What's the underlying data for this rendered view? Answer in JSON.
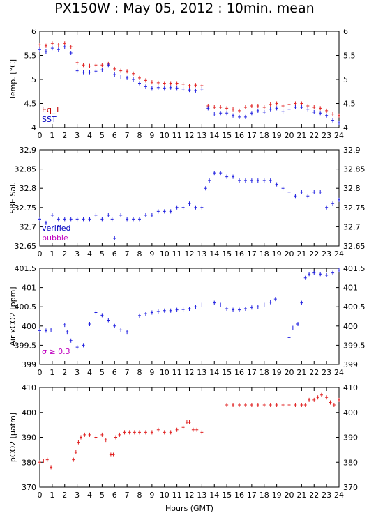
{
  "title": "PX150W : May 05, 2012 : 10min. mean",
  "xlabel": "Hours (GMT)",
  "chart_data": [
    {
      "type": "scatter",
      "ylabel": "Temp. [°C]",
      "ylim": [
        4,
        6
      ],
      "yticks": [
        4,
        4.5,
        5,
        5.5,
        6
      ],
      "yticklabels": [
        "4",
        "4.5",
        "5",
        "5.5",
        "6"
      ],
      "xlim": [
        0,
        24
      ],
      "xticks": [
        0,
        1,
        2,
        3,
        4,
        5,
        6,
        7,
        8,
        9,
        10,
        11,
        12,
        13,
        14,
        15,
        16,
        17,
        18,
        19,
        20,
        21,
        22,
        23,
        24
      ],
      "legend": [
        "Eq_T",
        "SST"
      ],
      "legend_position": "bottom-left",
      "series": [
        {
          "name": "Eq_T",
          "color": "#e02020",
          "x": [
            0,
            0.5,
            1,
            1.5,
            2,
            2.5,
            3,
            3.5,
            4,
            4.5,
            5,
            5.5,
            6,
            6.5,
            7,
            7.5,
            8,
            8.5,
            9,
            9.5,
            10,
            10.5,
            11,
            11.5,
            12,
            12.5,
            13,
            13.5,
            14,
            14.5,
            15,
            15.5,
            16,
            16.5,
            17,
            17.5,
            18,
            18.5,
            19,
            19.5,
            20,
            20.5,
            21,
            21.5,
            22,
            22.5,
            23,
            23.5,
            24
          ],
          "y": [
            5.72,
            5.7,
            5.75,
            5.72,
            5.75,
            5.68,
            5.35,
            5.3,
            5.28,
            5.3,
            5.3,
            5.32,
            5.22,
            5.18,
            5.17,
            5.12,
            5.03,
            4.98,
            4.94,
            4.93,
            4.92,
            4.92,
            4.92,
            4.9,
            4.87,
            4.88,
            4.87,
            4.45,
            4.42,
            4.42,
            4.4,
            4.38,
            4.35,
            4.42,
            4.45,
            4.45,
            4.42,
            4.48,
            4.5,
            4.45,
            4.48,
            4.5,
            4.5,
            4.45,
            4.42,
            4.4,
            4.35,
            4.28,
            4.25
          ]
        },
        {
          "name": "SST",
          "color": "#2020e0",
          "x": [
            0,
            0.5,
            1,
            1.5,
            2,
            2.5,
            3,
            3.5,
            4,
            4.5,
            5,
            5.5,
            6,
            6.5,
            7,
            7.5,
            8,
            8.5,
            9,
            9.5,
            10,
            10.5,
            11,
            11.5,
            12,
            12.5,
            13,
            13.5,
            14,
            14.5,
            15,
            15.5,
            16,
            16.5,
            17,
            17.5,
            18,
            18.5,
            19,
            19.5,
            20,
            20.5,
            21,
            21.5,
            22,
            22.5,
            23,
            23.5,
            24
          ],
          "y": [
            5.62,
            5.58,
            5.65,
            5.62,
            5.68,
            5.55,
            5.18,
            5.15,
            5.15,
            5.17,
            5.2,
            5.3,
            5.1,
            5.05,
            5.03,
            5.0,
            4.92,
            4.85,
            4.82,
            4.83,
            4.82,
            4.83,
            4.82,
            4.8,
            4.78,
            4.77,
            4.8,
            4.4,
            4.28,
            4.3,
            4.3,
            4.25,
            4.22,
            4.22,
            4.3,
            4.35,
            4.32,
            4.38,
            4.4,
            4.33,
            4.38,
            4.42,
            4.42,
            4.38,
            4.32,
            4.3,
            4.25,
            4.15,
            4.1
          ]
        }
      ]
    },
    {
      "type": "scatter",
      "ylabel": "SBE Sal.",
      "ylim": [
        32.65,
        32.9
      ],
      "yticks": [
        32.65,
        32.7,
        32.75,
        32.8,
        32.85,
        32.9
      ],
      "yticklabels": [
        "32.65",
        "32.7",
        "32.75",
        "32.8",
        "32.85",
        "32.9"
      ],
      "xlim": [
        0,
        24
      ],
      "xticks": [
        0,
        1,
        2,
        3,
        4,
        5,
        6,
        7,
        8,
        9,
        10,
        11,
        12,
        13,
        14,
        15,
        16,
        17,
        18,
        19,
        20,
        21,
        22,
        23,
        24
      ],
      "legend": [
        "verified",
        "bubble"
      ],
      "legend_position": "bottom-left",
      "series": [
        {
          "name": "verified",
          "color": "#2020e0",
          "x": [
            0,
            0.5,
            1,
            1.5,
            2,
            2.5,
            3,
            3.5,
            4,
            4.5,
            5,
            5.5,
            5.8,
            6,
            6.5,
            7,
            7.5,
            8,
            8.5,
            9,
            9.5,
            10,
            10.5,
            11,
            11.5,
            12,
            12.5,
            13,
            13.3,
            13.6,
            14,
            14.5,
            15,
            15.5,
            16,
            16.5,
            17,
            17.5,
            18,
            18.5,
            19,
            19.5,
            20,
            20.5,
            21,
            21.5,
            22,
            22.5,
            23,
            23.5,
            24
          ],
          "y": [
            32.72,
            32.71,
            32.73,
            32.72,
            32.72,
            32.72,
            32.72,
            32.72,
            32.72,
            32.73,
            32.72,
            32.73,
            32.72,
            32.67,
            32.73,
            32.72,
            32.72,
            32.72,
            32.73,
            32.73,
            32.74,
            32.74,
            32.74,
            32.75,
            32.75,
            32.76,
            32.75,
            32.75,
            32.8,
            32.82,
            32.84,
            32.84,
            32.83,
            32.83,
            32.82,
            32.82,
            32.82,
            32.82,
            32.82,
            32.82,
            32.81,
            32.8,
            32.79,
            32.78,
            32.79,
            32.78,
            32.79,
            32.79,
            32.75,
            32.76,
            32.77
          ]
        }
      ]
    },
    {
      "type": "scatter",
      "ylabel": "Air xCO2 [ppm]",
      "ylim": [
        399,
        401.5
      ],
      "yticks": [
        399,
        399.5,
        400,
        400.5,
        401,
        401.5
      ],
      "yticklabels": [
        "399",
        "399.5",
        "400",
        "400.5",
        "401",
        "401.5"
      ],
      "xlim": [
        0,
        24
      ],
      "xticks": [
        0,
        1,
        2,
        3,
        4,
        5,
        6,
        7,
        8,
        9,
        10,
        11,
        12,
        13,
        14,
        15,
        16,
        17,
        18,
        19,
        20,
        21,
        22,
        23,
        24
      ],
      "annotation": "σ ≥ 0.3",
      "series": [
        {
          "name": "",
          "color": "#2020e0",
          "x": [
            0,
            0.5,
            0.9,
            2,
            2.2,
            2.5,
            3,
            3.5,
            4,
            4.5,
            5,
            5.5,
            6,
            6.5,
            7,
            8,
            8.5,
            9,
            9.5,
            10,
            10.5,
            11,
            11.5,
            12,
            12.5,
            13,
            14,
            14.5,
            15,
            15.5,
            16,
            16.5,
            17,
            17.5,
            18,
            18.5,
            18.9,
            20,
            20.3,
            20.7,
            21,
            21.3,
            21.6,
            22,
            22.5,
            23,
            23.5,
            24
          ],
          "y": [
            399.88,
            399.88,
            399.9,
            400.03,
            399.85,
            399.62,
            399.45,
            399.5,
            400.05,
            400.35,
            400.28,
            400.15,
            400.0,
            399.9,
            399.85,
            400.27,
            400.32,
            400.35,
            400.38,
            400.4,
            400.4,
            400.42,
            400.43,
            400.45,
            400.5,
            400.55,
            400.6,
            400.55,
            400.45,
            400.42,
            400.42,
            400.45,
            400.48,
            400.5,
            400.55,
            400.62,
            400.7,
            399.7,
            399.95,
            400.05,
            400.6,
            401.25,
            401.35,
            401.38,
            401.35,
            401.32,
            401.38,
            401.45
          ]
        }
      ]
    },
    {
      "type": "scatter",
      "ylabel": "pCO2 [µatm]",
      "ylim": [
        370,
        410
      ],
      "yticks": [
        370,
        380,
        390,
        400,
        410
      ],
      "yticklabels": [
        "370",
        "380",
        "390",
        "400",
        "410"
      ],
      "xlim": [
        0,
        24
      ],
      "xticks": [
        0,
        1,
        2,
        3,
        4,
        5,
        6,
        7,
        8,
        9,
        10,
        11,
        12,
        13,
        14,
        15,
        16,
        17,
        18,
        19,
        20,
        21,
        22,
        23,
        24
      ],
      "series": [
        {
          "name": "",
          "color": "#e02020",
          "x": [
            0,
            0.3,
            0.6,
            0.9,
            2.7,
            2.9,
            3.1,
            3.3,
            3.6,
            4,
            4.5,
            5,
            5.3,
            5.7,
            5.9,
            6.1,
            6.4,
            6.8,
            7.2,
            7.6,
            8,
            8.5,
            9,
            9.5,
            10,
            10.5,
            11,
            11.5,
            11.8,
            12,
            12.3,
            12.6,
            13,
            15,
            15.5,
            16,
            16.5,
            17,
            17.5,
            18,
            18.5,
            19,
            19.5,
            20,
            20.5,
            21,
            21.3,
            21.6,
            22,
            22.3,
            22.6,
            23,
            23.3,
            23.6,
            24
          ],
          "y": [
            380,
            380.5,
            381,
            378,
            381,
            384,
            388,
            390,
            391,
            391,
            390,
            391,
            389,
            383,
            383,
            390,
            391,
            392,
            392,
            392,
            392,
            392,
            392,
            393,
            392,
            392,
            393,
            394,
            396,
            396,
            393,
            393,
            392,
            403,
            403,
            403,
            403,
            403,
            403,
            403,
            403,
            403,
            403,
            403,
            403,
            403,
            403,
            405,
            405,
            406,
            407,
            406,
            404,
            403,
            405
          ]
        }
      ]
    }
  ]
}
